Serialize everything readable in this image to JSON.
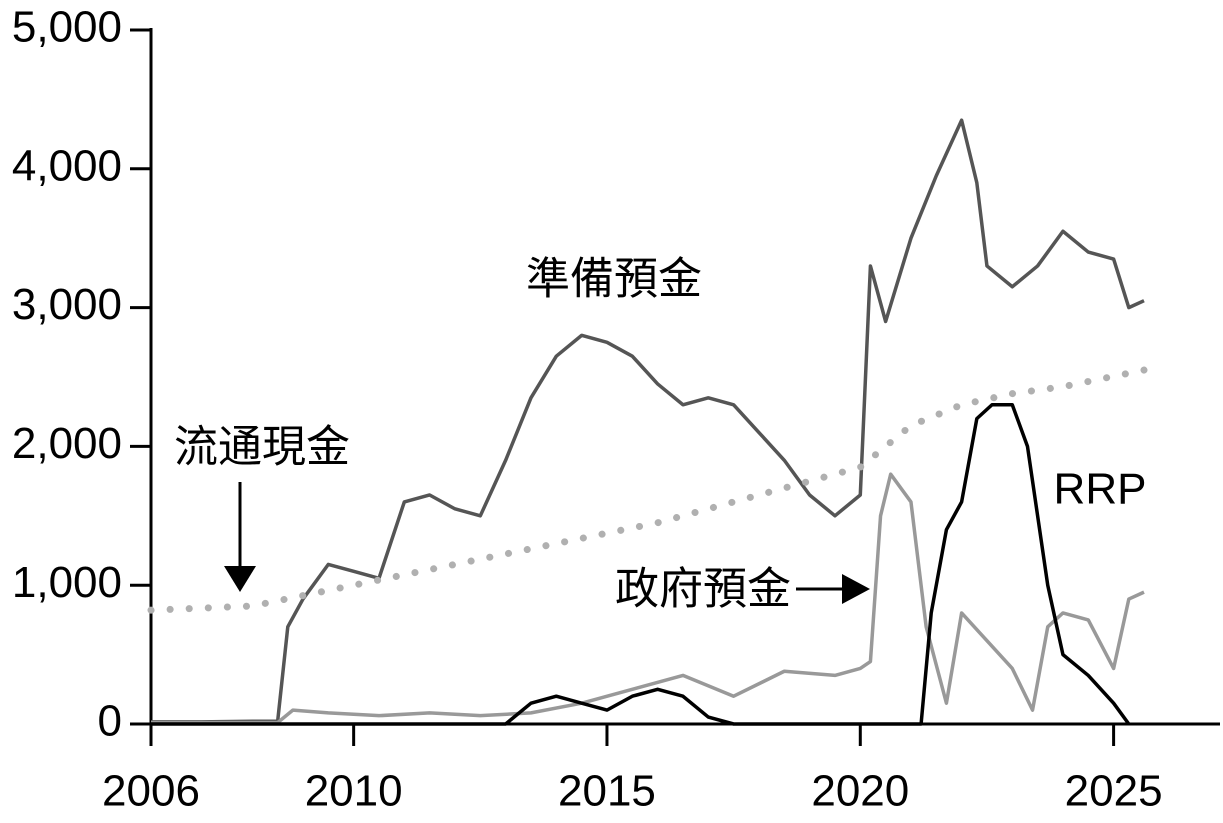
{
  "chart_data": {
    "type": "line",
    "xlim": [
      2006,
      2027.1
    ],
    "xticks": [
      2006,
      2010,
      2015,
      2020,
      2025
    ],
    "ylim": [
      0,
      5000
    ],
    "yticks": [
      0,
      {
        "value": 1000,
        "label": "1,000"
      },
      {
        "value": 2000,
        "label": "2,000"
      },
      {
        "value": 3000,
        "label": "3,000"
      },
      {
        "value": 4000,
        "label": "4,000"
      },
      {
        "value": 5000,
        "label": "5,000"
      }
    ],
    "series": [
      {
        "name": "準備預金",
        "color": "#555555",
        "dash": false,
        "x": [
          2006,
          2007,
          2008,
          2008.5,
          2008.7,
          2009,
          2009.5,
          2010,
          2010.5,
          2011,
          2011.5,
          2012,
          2012.5,
          2013,
          2013.5,
          2014,
          2014.5,
          2015,
          2015.5,
          2016,
          2016.5,
          2017,
          2017.5,
          2018,
          2018.5,
          2019,
          2019.5,
          2020,
          2020.2,
          2020.5,
          2021,
          2021.5,
          2022,
          2022.3,
          2022.5,
          2023,
          2023.5,
          2024,
          2024.5,
          2025,
          2025.3,
          2025.6
        ],
        "values": [
          15,
          15,
          20,
          20,
          700,
          900,
          1150,
          1100,
          1050,
          1600,
          1650,
          1550,
          1500,
          1900,
          2350,
          2650,
          2800,
          2750,
          2650,
          2450,
          2300,
          2350,
          2300,
          2100,
          1900,
          1650,
          1500,
          1650,
          3300,
          2900,
          3500,
          3950,
          4350,
          3900,
          3300,
          3150,
          3300,
          3550,
          3400,
          3350,
          3000,
          3050
        ]
      },
      {
        "name": "流通現金",
        "color": "#b0b0b0",
        "dash": true,
        "x": [
          2006,
          2008,
          2010,
          2012,
          2014,
          2016,
          2018,
          2020,
          2021,
          2022,
          2023,
          2024,
          2025.6
        ],
        "values": [
          820,
          850,
          1000,
          1150,
          1300,
          1450,
          1650,
          1850,
          2150,
          2300,
          2380,
          2430,
          2550
        ]
      },
      {
        "name": "政府預金",
        "color": "#999999",
        "dash": false,
        "x": [
          2006,
          2008.5,
          2008.8,
          2009.5,
          2010.5,
          2011.5,
          2012.5,
          2013.5,
          2014.5,
          2015.5,
          2016.5,
          2017.5,
          2018.5,
          2019.5,
          2020,
          2020.2,
          2020.4,
          2020.6,
          2021,
          2021.3,
          2021.7,
          2022,
          2022.5,
          2023,
          2023.4,
          2023.7,
          2024,
          2024.5,
          2025,
          2025.3,
          2025.6
        ],
        "values": [
          10,
          10,
          100,
          80,
          60,
          80,
          60,
          80,
          150,
          250,
          350,
          200,
          380,
          350,
          400,
          450,
          1500,
          1800,
          1600,
          700,
          150,
          800,
          600,
          400,
          100,
          700,
          800,
          750,
          400,
          900,
          950
        ]
      },
      {
        "name": "RRP",
        "color": "#000000",
        "dash": false,
        "x": [
          2006,
          2013,
          2013.5,
          2014,
          2014.5,
          2015,
          2015.5,
          2016,
          2016.5,
          2017,
          2017.5,
          2021.2,
          2021.4,
          2021.7,
          2022,
          2022.3,
          2022.6,
          2023,
          2023.3,
          2023.7,
          2024,
          2024.5,
          2025,
          2025.3
        ],
        "values": [
          0,
          0,
          150,
          200,
          150,
          100,
          200,
          250,
          200,
          50,
          0,
          0,
          800,
          1400,
          1600,
          2200,
          2300,
          2300,
          2000,
          1000,
          500,
          350,
          150,
          0
        ]
      }
    ]
  }
}
